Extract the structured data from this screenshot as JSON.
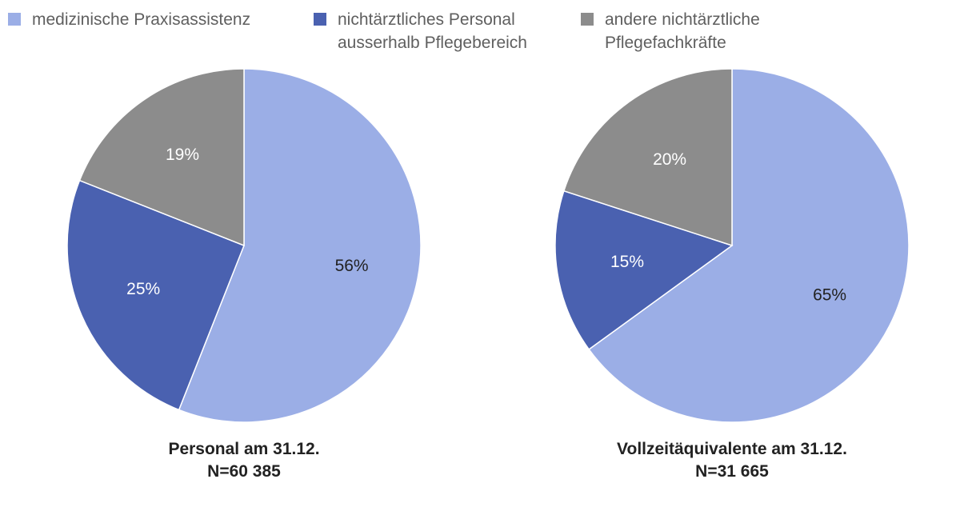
{
  "legend": [
    {
      "label": "medizinische Praxisassistenz",
      "color": "#9baee6"
    },
    {
      "label": "nichtärztliches Personal\nausserhalb Pflegebereich",
      "color": "#4a61b0"
    },
    {
      "label": "andere nichtärztliche\nPflegefachkräfte",
      "color": "#8c8c8c"
    }
  ],
  "chart_data": [
    {
      "type": "pie",
      "title": "Personal am 31.12.",
      "subtitle": "N=60 385",
      "categories": [
        "medizinische Praxisassistenz",
        "nichtärztliches Personal ausserhalb Pflegebereich",
        "andere nichtärztliche Pflegefachkräfte"
      ],
      "values": [
        56,
        25,
        19
      ],
      "data_labels": [
        "56%",
        "25%",
        "19%"
      ],
      "colors": [
        "#9baee6",
        "#4a61b0",
        "#8c8c8c"
      ],
      "label_colors": [
        "#222222",
        "#ffffff",
        "#ffffff"
      ],
      "legend_position": "top"
    },
    {
      "type": "pie",
      "title": "Vollzeitäquivalente am 31.12.",
      "subtitle": "N=31 665",
      "categories": [
        "medizinische Praxisassistenz",
        "nichtärztliches Personal ausserhalb Pflegebereich",
        "andere nichtärztliche Pflegefachkräfte"
      ],
      "values": [
        65,
        15,
        20
      ],
      "data_labels": [
        "65%",
        "15%",
        "20%"
      ],
      "colors": [
        "#9baee6",
        "#4a61b0",
        "#8c8c8c"
      ],
      "label_colors": [
        "#222222",
        "#ffffff",
        "#ffffff"
      ],
      "legend_position": "top"
    }
  ]
}
